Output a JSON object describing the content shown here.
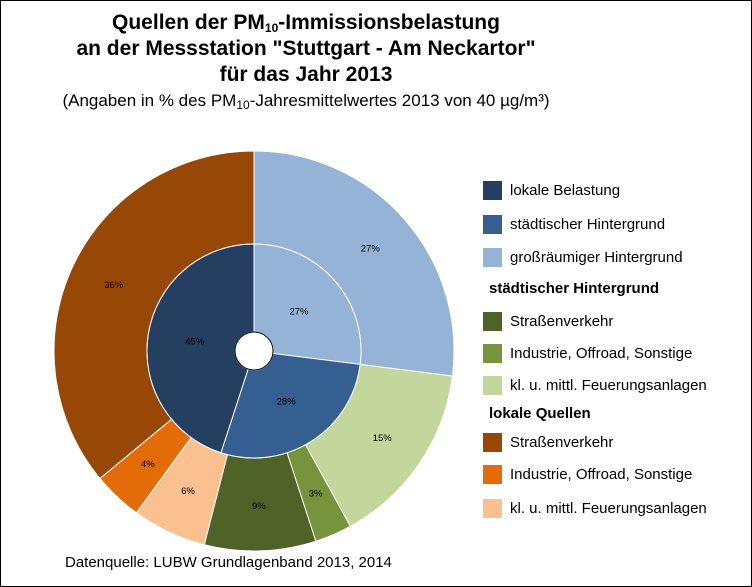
{
  "header": {
    "line1_pre": "Quellen der PM",
    "line1_sub": "10",
    "line1_post": "-Immissionsbelastung",
    "line2": "an der Messstation \"Stuttgart - Am Neckartor\"",
    "line3": "für das Jahr 2013",
    "sub_pre": "(Angaben in % des PM",
    "sub_sub": "10",
    "sub_post": "-Jahresmittelwertes 2013 von 40 µg/m³)"
  },
  "legend": {
    "items_top": [
      {
        "label": "lokale Belastung",
        "color": "#243f60"
      },
      {
        "label": "städtischer Hintergrund",
        "color": "#365f91"
      },
      {
        "label": "großräumiger Hintergrund",
        "color": "#95b3d7"
      }
    ],
    "group1_title": "städtischer Hintergrund",
    "group1_items": [
      {
        "label": "Straßenverkehr",
        "color": "#4f6228"
      },
      {
        "label": "Industrie, Offroad, Sonstige",
        "color": "#77933c"
      },
      {
        "label": "kl. u. mittl. Feuerungsanlagen",
        "color": "#c3d69b"
      }
    ],
    "group2_title": "lokale Quellen",
    "group2_items": [
      {
        "label": "Straßenverkehr",
        "color": "#974806"
      },
      {
        "label": "Industrie, Offroad, Sonstige",
        "color": "#e36c09"
      },
      {
        "label": "kl. u. mittl. Feuerungsanlagen",
        "color": "#fac090"
      }
    ]
  },
  "source": "Datenquelle: LUBW Grundlagenband 2013, 2014",
  "chart_data": {
    "type": "pie",
    "subtype": "nested-donut",
    "inner_ring": [
      {
        "name": "großräumiger Hintergrund",
        "value": 27,
        "label": "27%",
        "color": "#95b3d7"
      },
      {
        "name": "städtischer Hintergrund",
        "value": 28,
        "label": "28%",
        "color": "#365f91"
      },
      {
        "name": "lokale Belastung",
        "value": 45,
        "label": "45%",
        "color": "#243f60"
      }
    ],
    "outer_ring": [
      {
        "name": "großräumiger Hintergrund",
        "value": 27,
        "label": "27%",
        "color": "#95b3d7"
      },
      {
        "name": "städtischer Hintergrund - kl. u. mittl. Feuerungsanlagen",
        "value": 15,
        "label": "15%",
        "color": "#c3d69b"
      },
      {
        "name": "städtischer Hintergrund - Industrie, Offroad, Sonstige",
        "value": 3,
        "label": "3%",
        "color": "#77933c"
      },
      {
        "name": "städtischer Hintergrund - Straßenverkehr",
        "value": 9,
        "label": "9%",
        "color": "#4f6228"
      },
      {
        "name": "lokale Quellen - kl. u. mittl. Feuerungsanlagen",
        "value": 6,
        "label": "6%",
        "color": "#fac090"
      },
      {
        "name": "lokale Quellen - Industrie, Offroad, Sonstige",
        "value": 4,
        "label": "4%",
        "color": "#e36c09"
      },
      {
        "name": "lokale Quellen - Straßenverkehr",
        "value": 36,
        "label": "36%",
        "color": "#974806"
      }
    ],
    "legend_position": "right"
  }
}
